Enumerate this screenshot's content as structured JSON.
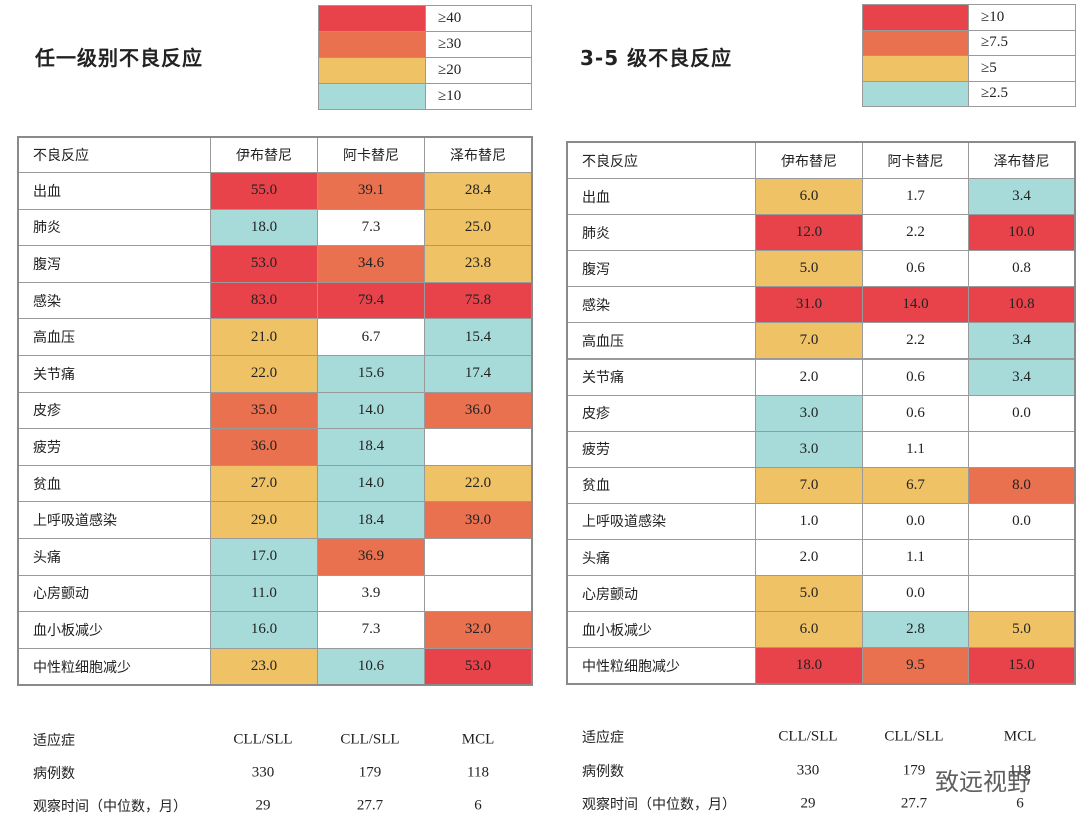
{
  "panels": [
    {
      "title": "任一级别不良反应",
      "legend": [
        {
          "label": "≥40",
          "color": "#e8434b"
        },
        {
          "label": "≥30",
          "color": "#e9714f"
        },
        {
          "label": "≥20",
          "color": "#efc266"
        },
        {
          "label": "≥10",
          "color": "#a7dbda"
        }
      ],
      "table": {
        "header": [
          "不良反应",
          "伊布替尼",
          "阿卡替尼",
          "泽布替尼"
        ],
        "rows": [
          [
            "出血",
            "55.0",
            "39.1",
            "28.4"
          ],
          [
            "肺炎",
            "18.0",
            "7.3",
            "25.0"
          ],
          [
            "腹泻",
            "53.0",
            "34.6",
            "23.8"
          ],
          [
            "感染",
            "83.0",
            "79.4",
            "75.8"
          ],
          [
            "高血压",
            "21.0",
            "6.7",
            "15.4"
          ],
          [
            "关节痛",
            "22.0",
            "15.6",
            "17.4"
          ],
          [
            "皮疹",
            "35.0",
            "14.0",
            "36.0"
          ],
          [
            "疲劳",
            "36.0",
            "18.4",
            null
          ],
          [
            "贫血",
            "27.0",
            "14.0",
            "22.0"
          ],
          [
            "上呼吸道感染",
            "29.0",
            "18.4",
            "39.0"
          ],
          [
            "头痛",
            "17.0",
            "36.9",
            null
          ],
          [
            "心房颤动",
            "11.0",
            "3.9",
            null
          ],
          [
            "血小板减少",
            "16.0",
            "7.3",
            "32.0"
          ],
          [
            "中性粒细胞减少",
            "23.0",
            "10.6",
            "53.0"
          ]
        ]
      },
      "summary": [
        [
          "适应症",
          "CLL/SLL",
          "CLL/SLL",
          "MCL"
        ],
        [
          "病例数",
          "330",
          "179",
          "118"
        ],
        [
          "观察时间（中位数，月）",
          "29",
          "27.7",
          "6"
        ]
      ]
    },
    {
      "title": "3-5 级不良反应",
      "legend": [
        {
          "label": "≥10",
          "color": "#e8434b"
        },
        {
          "label": "≥7.5",
          "color": "#e9714f"
        },
        {
          "label": "≥5",
          "color": "#efc266"
        },
        {
          "label": "≥2.5",
          "color": "#a7dbda"
        }
      ],
      "table": {
        "header": [
          "不良反应",
          "伊布替尼",
          "阿卡替尼",
          "泽布替尼"
        ],
        "rows": [
          [
            "出血",
            "6.0",
            "1.7",
            "3.4"
          ],
          [
            "肺炎",
            "12.0",
            "2.2",
            "10.0"
          ],
          [
            "腹泻",
            "5.0",
            "0.6",
            "0.8"
          ],
          [
            "感染",
            "31.0",
            "14.0",
            "10.8"
          ],
          [
            "高血压",
            "7.0",
            "2.2",
            "3.4"
          ],
          [
            "关节痛",
            "2.0",
            "0.6",
            "3.4"
          ],
          [
            "皮疹",
            "3.0",
            "0.6",
            "0.0"
          ],
          [
            "疲劳",
            "3.0",
            "1.1",
            null
          ],
          [
            "贫血",
            "7.0",
            "6.7",
            "8.0"
          ],
          [
            "上呼吸道感染",
            "1.0",
            "0.0",
            "0.0"
          ],
          [
            "头痛",
            "2.0",
            "1.1",
            null
          ],
          [
            "心房颤动",
            "5.0",
            "0.0",
            null
          ],
          [
            "血小板减少",
            "6.0",
            "2.8",
            "5.0"
          ],
          [
            "中性粒细胞减少",
            "18.0",
            "9.5",
            "15.0"
          ]
        ]
      },
      "summary": [
        [
          "适应症",
          "CLL/SLL",
          "CLL/SLL",
          "MCL"
        ],
        [
          "病例数",
          "330",
          "179",
          "118"
        ],
        [
          "观察时间（中位数，月）",
          "29",
          "27.7",
          "6"
        ]
      ]
    }
  ],
  "watermark": "致远视野"
}
